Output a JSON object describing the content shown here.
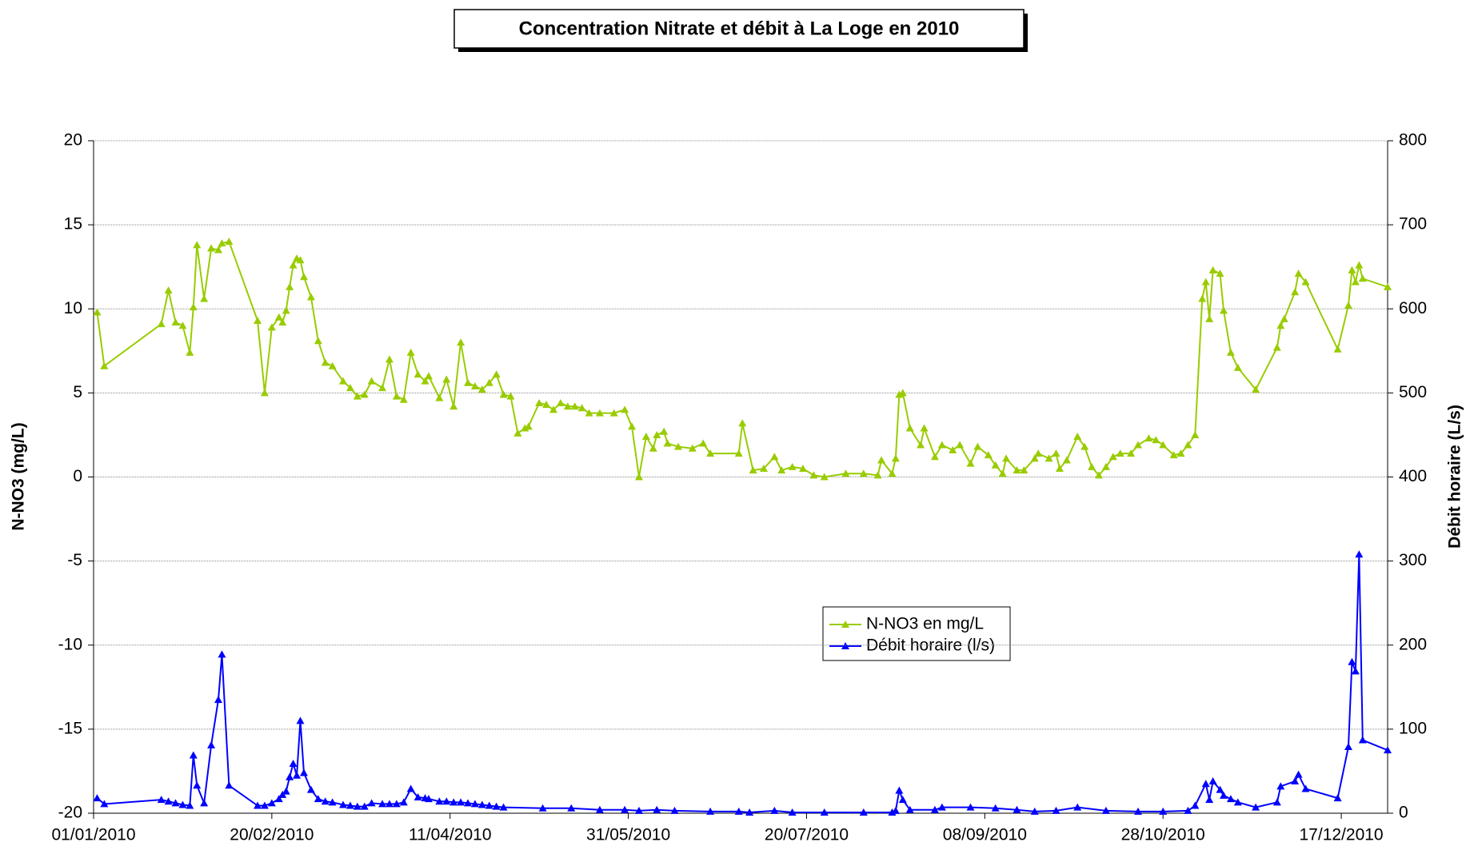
{
  "chart_data": {
    "type": "line",
    "title": "Concentration Nitrate et débit à La Loge en 2010",
    "y_label": "N-NO3 (mg/L)",
    "y2_label": "Débit horaire (L/s)",
    "grid": true,
    "xlim": [
      "2010-01-01",
      "2010-12-30"
    ],
    "xticks": [
      {
        "value": "2010-01-01",
        "label": "01/01/2010"
      },
      {
        "value": "2010-02-20",
        "label": "20/02/2010"
      },
      {
        "value": "2010-04-11",
        "label": "11/04/2010"
      },
      {
        "value": "2010-05-31",
        "label": "31/05/2010"
      },
      {
        "value": "2010-07-20",
        "label": "20/07/2010"
      },
      {
        "value": "2010-09-08",
        "label": "08/09/2010"
      },
      {
        "value": "2010-10-28",
        "label": "28/10/2010"
      },
      {
        "value": "2010-12-17",
        "label": "17/12/2010"
      }
    ],
    "ylim": [
      -20,
      20
    ],
    "yticks": [
      -20,
      -15,
      -10,
      -5,
      0,
      5,
      10,
      15,
      20
    ],
    "y2lim": [
      0,
      800
    ],
    "y2ticks": [
      0,
      100,
      200,
      300,
      400,
      500,
      600,
      700,
      800
    ],
    "series": [
      {
        "name": "N-NO3 en mg/L",
        "color": "#99cc00",
        "axis": "y",
        "x": [
          "2010-01-02",
          "2010-01-04",
          "2010-01-20",
          "2010-01-22",
          "2010-01-24",
          "2010-01-26",
          "2010-01-28",
          "2010-01-29",
          "2010-01-30",
          "2010-02-01",
          "2010-02-03",
          "2010-02-05",
          "2010-02-06",
          "2010-02-08",
          "2010-02-16",
          "2010-02-18",
          "2010-02-20",
          "2010-02-22",
          "2010-02-23",
          "2010-02-24",
          "2010-02-25",
          "2010-02-26",
          "2010-02-27",
          "2010-02-28",
          "2010-03-01",
          "2010-03-03",
          "2010-03-05",
          "2010-03-07",
          "2010-03-09",
          "2010-03-12",
          "2010-03-14",
          "2010-03-16",
          "2010-03-18",
          "2010-03-20",
          "2010-03-23",
          "2010-03-25",
          "2010-03-27",
          "2010-03-29",
          "2010-03-31",
          "2010-04-02",
          "2010-04-04",
          "2010-04-05",
          "2010-04-08",
          "2010-04-10",
          "2010-04-12",
          "2010-04-14",
          "2010-04-16",
          "2010-04-18",
          "2010-04-20",
          "2010-04-22",
          "2010-04-24",
          "2010-04-26",
          "2010-04-28",
          "2010-04-30",
          "2010-05-02",
          "2010-05-03",
          "2010-05-06",
          "2010-05-08",
          "2010-05-10",
          "2010-05-12",
          "2010-05-14",
          "2010-05-16",
          "2010-05-18",
          "2010-05-20",
          "2010-05-23",
          "2010-05-27",
          "2010-05-30",
          "2010-06-01",
          "2010-06-03",
          "2010-06-05",
          "2010-06-07",
          "2010-06-08",
          "2010-06-10",
          "2010-06-11",
          "2010-06-14",
          "2010-06-18",
          "2010-06-21",
          "2010-06-23",
          "2010-07-01",
          "2010-07-02",
          "2010-07-05",
          "2010-07-08",
          "2010-07-11",
          "2010-07-13",
          "2010-07-16",
          "2010-07-19",
          "2010-07-22",
          "2010-07-25",
          "2010-07-31",
          "2010-08-05",
          "2010-08-09",
          "2010-08-10",
          "2010-08-13",
          "2010-08-14",
          "2010-08-15",
          "2010-08-16",
          "2010-08-18",
          "2010-08-21",
          "2010-08-22",
          "2010-08-25",
          "2010-08-27",
          "2010-08-30",
          "2010-09-01",
          "2010-09-04",
          "2010-09-06",
          "2010-09-09",
          "2010-09-11",
          "2010-09-13",
          "2010-09-14",
          "2010-09-17",
          "2010-09-19",
          "2010-09-22",
          "2010-09-23",
          "2010-09-26",
          "2010-09-28",
          "2010-09-29",
          "2010-10-01",
          "2010-10-04",
          "2010-10-06",
          "2010-10-08",
          "2010-10-10",
          "2010-10-12",
          "2010-10-14",
          "2010-10-16",
          "2010-10-19",
          "2010-10-21",
          "2010-10-24",
          "2010-10-26",
          "2010-10-28",
          "2010-10-31",
          "2010-11-02",
          "2010-11-04",
          "2010-11-06",
          "2010-11-08",
          "2010-11-09",
          "2010-11-10",
          "2010-11-11",
          "2010-11-13",
          "2010-11-14",
          "2010-11-16",
          "2010-11-18",
          "2010-11-23",
          "2010-11-29",
          "2010-11-30",
          "2010-12-01",
          "2010-12-04",
          "2010-12-05",
          "2010-12-07",
          "2010-12-16",
          "2010-12-19",
          "2010-12-20",
          "2010-12-21",
          "2010-12-22",
          "2010-12-23",
          "2010-12-30"
        ],
        "values": [
          9.8,
          6.6,
          9.1,
          11.1,
          9.2,
          9.0,
          7.4,
          10.1,
          13.8,
          10.6,
          13.6,
          13.5,
          13.9,
          14.0,
          9.3,
          5.0,
          8.9,
          9.5,
          9.2,
          9.9,
          11.3,
          12.6,
          13.0,
          12.9,
          11.9,
          10.7,
          8.1,
          6.8,
          6.6,
          5.7,
          5.3,
          4.8,
          4.9,
          5.7,
          5.3,
          7.0,
          4.8,
          4.6,
          7.4,
          6.1,
          5.7,
          6.0,
          4.7,
          5.8,
          4.2,
          8.0,
          5.6,
          5.4,
          5.2,
          5.6,
          6.1,
          4.9,
          4.8,
          2.6,
          2.9,
          3.0,
          4.4,
          4.3,
          4.0,
          4.4,
          4.2,
          4.2,
          4.1,
          3.8,
          3.8,
          3.8,
          4.0,
          3.0,
          0.0,
          2.4,
          1.7,
          2.5,
          2.7,
          2.0,
          1.8,
          1.7,
          2.0,
          1.4,
          1.4,
          3.2,
          0.4,
          0.5,
          1.2,
          0.4,
          0.6,
          0.5,
          0.1,
          0.0,
          0.2,
          0.2,
          0.1,
          1.0,
          0.2,
          1.1,
          4.9,
          5.0,
          2.9,
          1.9,
          2.9,
          1.2,
          1.9,
          1.6,
          1.9,
          0.8,
          1.8,
          1.3,
          0.7,
          0.2,
          1.1,
          0.4,
          0.4,
          1.1,
          1.4,
          1.1,
          1.4,
          0.5,
          1.0,
          2.4,
          1.8,
          0.6,
          0.1,
          0.6,
          1.2,
          1.4,
          1.4,
          1.9,
          2.3,
          2.2,
          1.9,
          1.3,
          1.4,
          1.9,
          2.5,
          10.6,
          11.6,
          9.4,
          12.3,
          12.1,
          9.9,
          7.4,
          6.5,
          5.2,
          7.7,
          9.0,
          9.4,
          11.0,
          12.1,
          11.6,
          7.6,
          10.2,
          12.3,
          11.6,
          12.6,
          11.8,
          11.3
        ]
      },
      {
        "name": "Débit horaire (l/s)",
        "color": "#0000ff",
        "axis": "y2",
        "x": [
          "2010-01-02",
          "2010-01-04",
          "2010-01-20",
          "2010-01-22",
          "2010-01-24",
          "2010-01-26",
          "2010-01-28",
          "2010-01-29",
          "2010-01-30",
          "2010-02-01",
          "2010-02-03",
          "2010-02-05",
          "2010-02-06",
          "2010-02-08",
          "2010-02-16",
          "2010-02-18",
          "2010-02-20",
          "2010-02-22",
          "2010-02-23",
          "2010-02-24",
          "2010-02-25",
          "2010-02-26",
          "2010-02-27",
          "2010-02-28",
          "2010-03-01",
          "2010-03-03",
          "2010-03-05",
          "2010-03-07",
          "2010-03-09",
          "2010-03-12",
          "2010-03-14",
          "2010-03-16",
          "2010-03-18",
          "2010-03-20",
          "2010-03-23",
          "2010-03-25",
          "2010-03-27",
          "2010-03-29",
          "2010-03-31",
          "2010-04-02",
          "2010-04-04",
          "2010-04-05",
          "2010-04-08",
          "2010-04-10",
          "2010-04-12",
          "2010-04-14",
          "2010-04-16",
          "2010-04-18",
          "2010-04-20",
          "2010-04-22",
          "2010-04-24",
          "2010-04-26",
          "2010-05-07",
          "2010-05-15",
          "2010-05-23",
          "2010-05-30",
          "2010-06-03",
          "2010-06-08",
          "2010-06-13",
          "2010-06-23",
          "2010-07-01",
          "2010-07-04",
          "2010-07-11",
          "2010-07-16",
          "2010-07-25",
          "2010-08-05",
          "2010-08-13",
          "2010-08-14",
          "2010-08-15",
          "2010-08-16",
          "2010-08-18",
          "2010-08-25",
          "2010-08-27",
          "2010-09-04",
          "2010-09-11",
          "2010-09-17",
          "2010-09-22",
          "2010-09-28",
          "2010-10-04",
          "2010-10-12",
          "2010-10-21",
          "2010-10-28",
          "2010-11-04",
          "2010-11-06",
          "2010-11-09",
          "2010-11-10",
          "2010-11-11",
          "2010-11-13",
          "2010-11-14",
          "2010-11-16",
          "2010-11-18",
          "2010-11-23",
          "2010-11-29",
          "2010-11-30",
          "2010-12-04",
          "2010-12-05",
          "2010-12-07",
          "2010-12-16",
          "2010-12-19",
          "2010-12-20",
          "2010-12-21",
          "2010-12-22",
          "2010-12-23",
          "2010-12-30"
        ],
        "values": [
          18,
          11,
          16,
          14,
          12,
          10,
          9,
          69,
          33,
          12,
          81,
          135,
          189,
          33,
          9,
          9,
          12,
          17,
          22,
          26,
          43,
          59,
          45,
          110,
          48,
          28,
          17,
          14,
          13,
          10,
          9,
          8,
          8,
          12,
          11,
          11,
          11,
          13,
          29,
          19,
          18,
          17,
          14,
          14,
          13,
          13,
          12,
          11,
          10,
          9,
          8,
          7,
          6,
          6,
          4,
          4,
          3,
          4,
          3,
          2,
          2,
          1,
          3,
          1,
          1,
          1,
          1,
          3,
          27,
          16,
          4,
          4,
          7,
          7,
          6,
          4,
          2,
          3,
          7,
          3,
          2,
          2,
          3,
          9,
          35,
          16,
          38,
          28,
          21,
          17,
          13,
          7,
          13,
          32,
          38,
          46,
          29,
          18,
          79,
          180,
          169,
          308,
          87,
          75
        ]
      }
    ]
  }
}
